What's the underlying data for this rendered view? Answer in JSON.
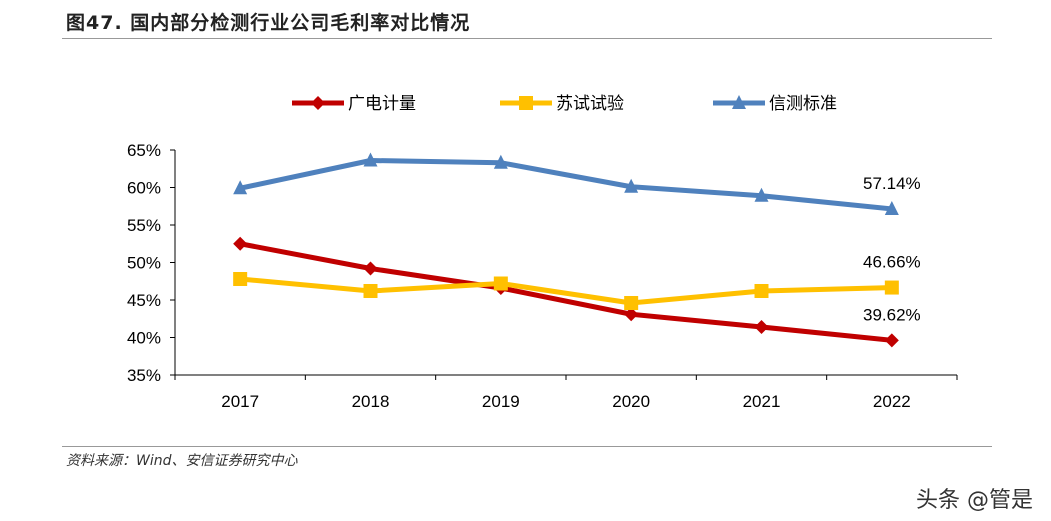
{
  "title": "图47. 国内部分检测行业公司毛利率对比情况",
  "source": "资料来源：Wind、安信证券研究中心",
  "watermark": "头条 @管是",
  "chart_data": {
    "type": "line",
    "title": "",
    "xlabel": "",
    "ylabel": "",
    "categories": [
      "2017",
      "2018",
      "2019",
      "2020",
      "2021",
      "2022"
    ],
    "ylim": [
      35,
      65
    ],
    "yticks": [
      35,
      40,
      45,
      50,
      55,
      60,
      65
    ],
    "ytick_labels": [
      "35%",
      "40%",
      "45%",
      "50%",
      "55%",
      "60%",
      "65%"
    ],
    "grid": false,
    "legend_position": "top",
    "series": [
      {
        "name": "广电计量",
        "color": "#C00000",
        "marker": "diamond",
        "values": [
          52.5,
          49.2,
          46.6,
          43.1,
          41.4,
          39.62
        ],
        "end_label": "39.62%"
      },
      {
        "name": "苏试试验",
        "color": "#FFC000",
        "marker": "square",
        "values": [
          47.8,
          46.2,
          47.2,
          44.6,
          46.2,
          46.66
        ],
        "end_label": "46.66%"
      },
      {
        "name": "信测标准",
        "color": "#4F81BD",
        "marker": "triangle",
        "values": [
          59.9,
          63.6,
          63.3,
          60.1,
          58.9,
          57.14
        ],
        "end_label": "57.14%"
      }
    ]
  }
}
